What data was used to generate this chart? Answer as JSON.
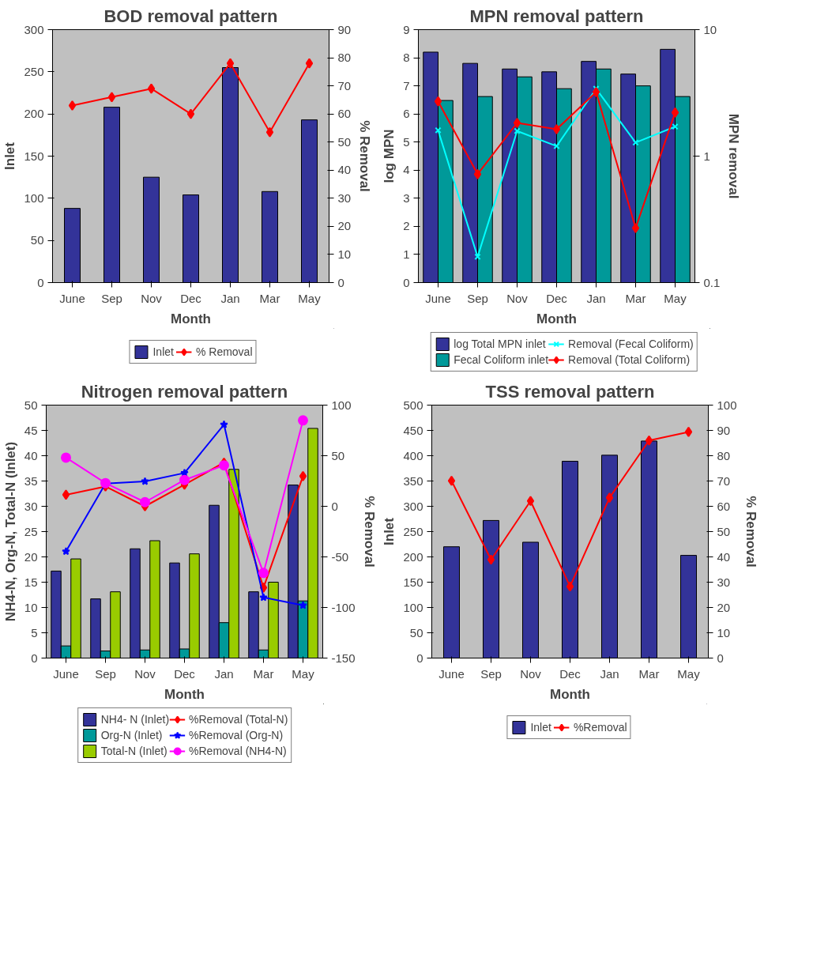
{
  "chart_data": [
    {
      "type": "bar",
      "title": "BOD removal pattern",
      "xlabel": "Month",
      "ylabel": "Inlet",
      "y2label": "% Removal",
      "categories": [
        "June",
        "Sep",
        "Nov",
        "Dec",
        "Jan",
        "Mar",
        "May"
      ],
      "ylim": [
        0,
        300
      ],
      "yticks": [
        0,
        50,
        100,
        150,
        200,
        250,
        300
      ],
      "y2lim": [
        0,
        90
      ],
      "y2ticks": [
        0,
        10,
        20,
        30,
        40,
        50,
        60,
        70,
        80,
        90
      ],
      "grid": false,
      "legend": "bottom",
      "series": [
        {
          "name": "Inlet",
          "color": "#333399",
          "values": [
            88,
            208,
            125,
            104,
            255,
            108,
            193
          ]
        },
        {
          "name": "% Removal",
          "type": "line",
          "axis": "y2",
          "marker": "diamond",
          "color": "#ff0000",
          "values": [
            63,
            66,
            69,
            60,
            78,
            53.5,
            78
          ]
        }
      ]
    },
    {
      "type": "bar",
      "title": "MPN removal pattern",
      "xlabel": "Month",
      "ylabel": "log MPN",
      "y2label": "MPN removal",
      "categories": [
        "June",
        "Sep",
        "Nov",
        "Dec",
        "Jan",
        "Mar",
        "May"
      ],
      "ylim": [
        0,
        9
      ],
      "yticks": [
        0,
        1,
        2,
        3,
        4,
        5,
        6,
        7,
        8,
        9
      ],
      "y2lim": [
        0.1,
        10
      ],
      "y2ticks": [
        0.1,
        1,
        10
      ],
      "log": "y2",
      "grid": false,
      "legend": "bottom",
      "series": [
        {
          "name": "log Total MPN inlet",
          "color": "#333399",
          "values": [
            8.2,
            7.8,
            7.6,
            7.5,
            7.87,
            7.42,
            8.3
          ]
        },
        {
          "name": "Fecal Coliform inlet",
          "color": "#009999",
          "values": [
            6.48,
            6.62,
            7.32,
            6.9,
            7.6,
            7.0,
            6.62
          ]
        },
        {
          "name": "Removal (Fecal Coliform)",
          "type": "line",
          "axis": "y2",
          "marker": "cross",
          "color": "#00ffff",
          "values": [
            1.6,
            0.16,
            1.58,
            1.2,
            3.41,
            1.28,
            1.71
          ]
        },
        {
          "name": "Removal (Total Coliform)",
          "type": "line",
          "axis": "y2",
          "marker": "diamond",
          "color": "#ff0000",
          "values": [
            2.71,
            0.72,
            1.83,
            1.63,
            3.21,
            0.27,
            2.21
          ]
        }
      ]
    },
    {
      "type": "bar",
      "title": "Nitrogen removal pattern",
      "xlabel": "Month",
      "ylabel": "NH4-N, Org-N, Total-N (Inlet)",
      "y2label": "% Removal",
      "categories": [
        "June",
        "Sep",
        "Nov",
        "Dec",
        "Jan",
        "Mar",
        "May"
      ],
      "ylim": [
        0,
        50
      ],
      "yticks": [
        0,
        5,
        10,
        15,
        20,
        25,
        30,
        35,
        40,
        45,
        50
      ],
      "y2lim": [
        -150,
        100
      ],
      "y2ticks": [
        -150,
        -100,
        -50,
        0,
        50,
        100
      ],
      "grid": false,
      "legend": "bottom",
      "series": [
        {
          "name": "NH4- N (Inlet)",
          "color": "#333399",
          "values": [
            17.2,
            11.7,
            21.6,
            18.8,
            30.2,
            13.1,
            34.2
          ]
        },
        {
          "name": "Org-N (Inlet)",
          "color": "#009999",
          "values": [
            2.4,
            1.4,
            1.6,
            1.8,
            7.0,
            1.6,
            11.3
          ]
        },
        {
          "name": "Total-N (Inlet)",
          "color": "#99cc00",
          "values": [
            19.6,
            13.1,
            23.2,
            20.6,
            37.3,
            15.0,
            45.4
          ]
        },
        {
          "name": "%Removal (Total-N)",
          "type": "line",
          "axis": "y2",
          "marker": "diamond",
          "color": "#ff0000",
          "values": [
            11.4,
            19.6,
            0,
            21.3,
            43.2,
            -80.4,
            29.8
          ]
        },
        {
          "name": "%Removal (Org-N)",
          "type": "line",
          "axis": "y2",
          "marker": "star",
          "color": "#0000ff",
          "values": [
            -44.6,
            22.5,
            24.6,
            32.9,
            80.8,
            -90.1,
            -97.9
          ]
        },
        {
          "name": "%Removal (NH4-N)",
          "type": "line",
          "axis": "y2",
          "marker": "circle",
          "color": "#ff00ff",
          "values": [
            48.1,
            22.9,
            4.1,
            26,
            40.5,
            -65.9,
            84.9
          ]
        }
      ]
    },
    {
      "type": "bar",
      "title": "TSS removal pattern",
      "xlabel": "Month",
      "ylabel": "Inlet",
      "y2label": "% Removal",
      "categories": [
        "June",
        "Sep",
        "Nov",
        "Dec",
        "Jan",
        "Mar",
        "May"
      ],
      "ylim": [
        0,
        500
      ],
      "yticks": [
        0,
        50,
        100,
        150,
        200,
        250,
        300,
        350,
        400,
        450,
        500
      ],
      "y2lim": [
        0,
        100
      ],
      "y2ticks": [
        0,
        10,
        20,
        30,
        40,
        50,
        60,
        70,
        80,
        90,
        100
      ],
      "grid": false,
      "legend": "bottom",
      "series": [
        {
          "name": "Inlet",
          "color": "#333399",
          "values": [
            220,
            272,
            229,
            389,
            401,
            429,
            203
          ]
        },
        {
          "name": "%Removal",
          "type": "line",
          "axis": "y2",
          "marker": "diamond",
          "color": "#ff0000",
          "values": [
            70.1,
            38.9,
            62.1,
            28.3,
            63.4,
            86,
            89.4
          ]
        }
      ]
    }
  ]
}
